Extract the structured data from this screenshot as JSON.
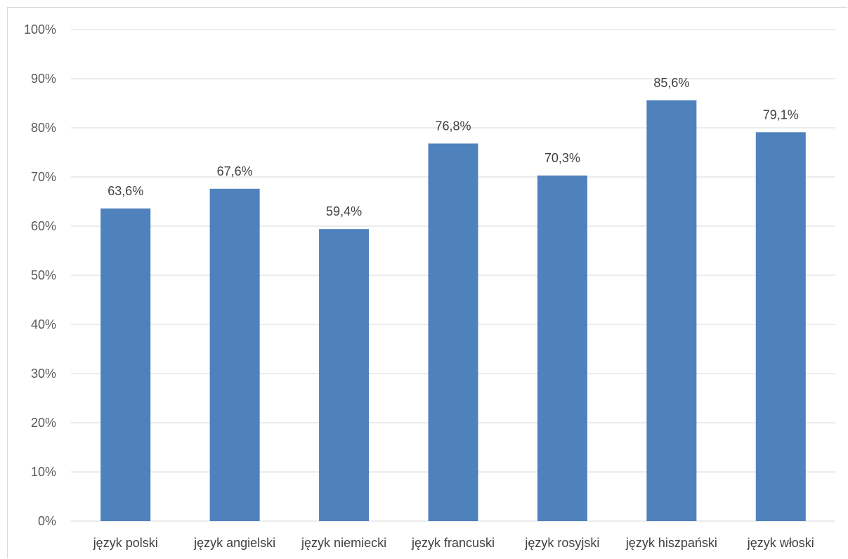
{
  "chart_data": {
    "type": "bar",
    "categories": [
      "język polski",
      "język angielski",
      "język niemiecki",
      "język francuski",
      "język rosyjski",
      "język hiszpański",
      "język włoski"
    ],
    "values": [
      63.6,
      67.6,
      59.4,
      76.8,
      70.3,
      85.6,
      79.1
    ],
    "data_labels": [
      "63,6%",
      "67,6%",
      "59,4%",
      "76,8%",
      "70,3%",
      "85,6%",
      "79,1%"
    ],
    "yticks": [
      "0%",
      "10%",
      "20%",
      "30%",
      "40%",
      "50%",
      "60%",
      "70%",
      "80%",
      "90%",
      "100%"
    ],
    "ylim": [
      0,
      100
    ],
    "grid": true,
    "legend": "none",
    "bar_color": "#4f81bd",
    "grid_color": "#d9d9d9"
  }
}
